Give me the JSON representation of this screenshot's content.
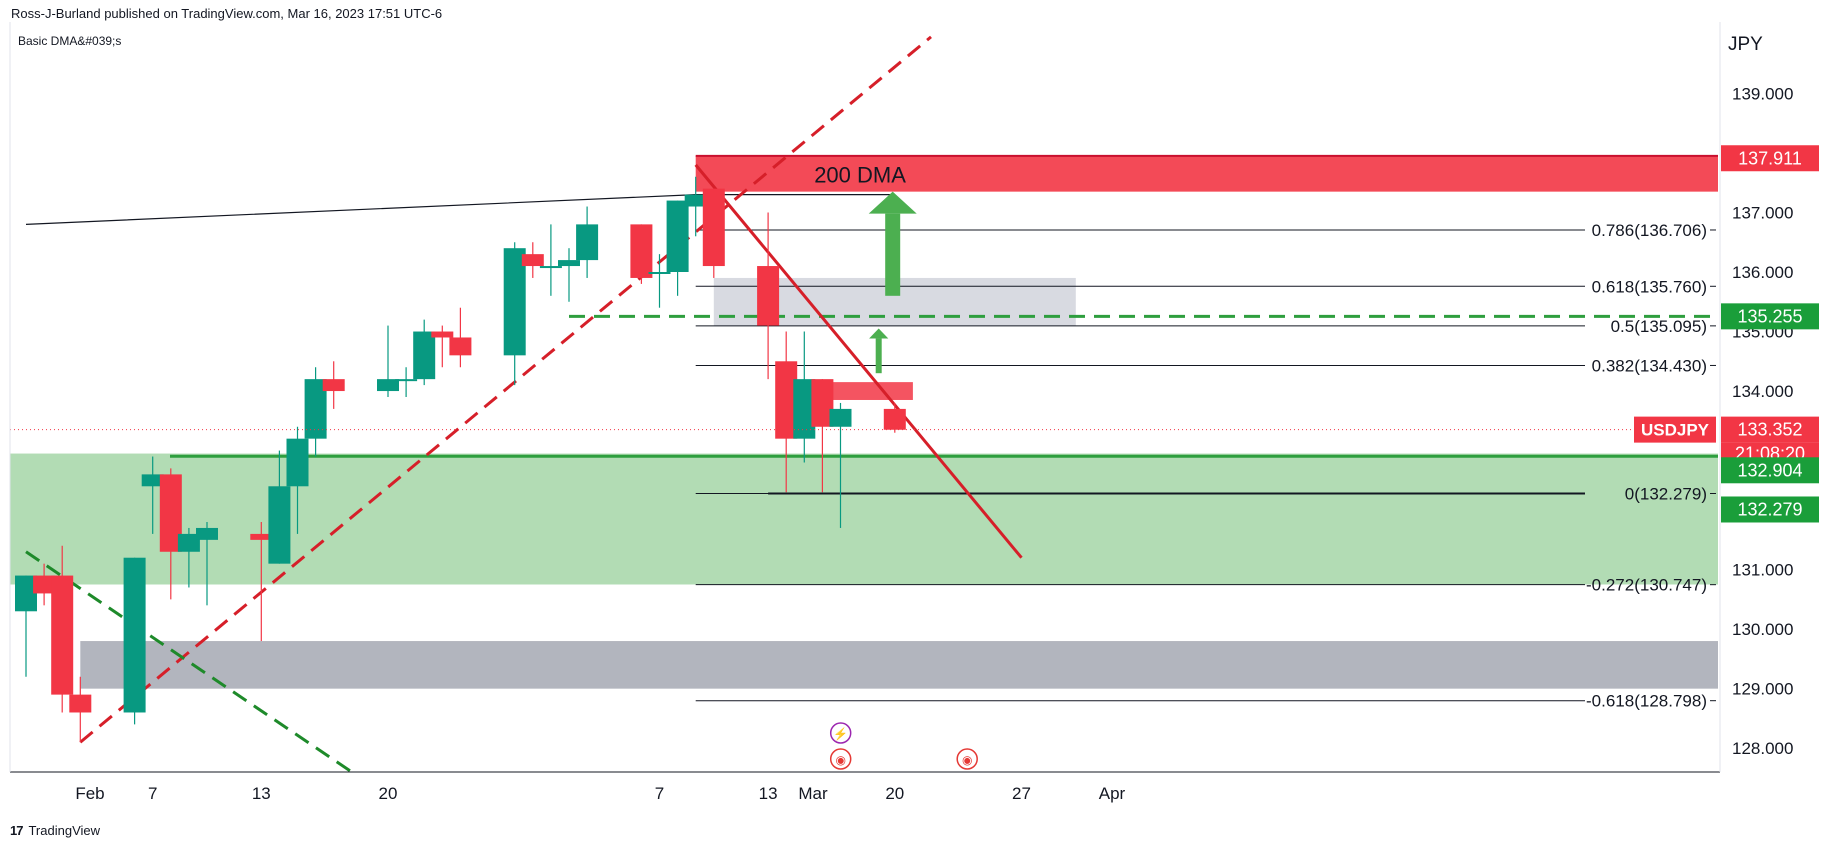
{
  "header": "Ross-J-Burland published on TradingView.com, Mar 16, 2023 17:51 UTC-6",
  "indicator": "Basic DMA&#039;s",
  "currency": "JPY",
  "brand": "TradingView",
  "annotations": {
    "dma": "200 DMA"
  },
  "colors": {
    "up": "#089981",
    "down": "#f23645",
    "resistance": "#f23645",
    "support_zone": "#a5d6a7",
    "grey_zone": "#b2b5be",
    "green_line": "#2e9e3e",
    "trend_red": "#d61f29",
    "trend_green": "#1e8a2a",
    "arrow": "#4caf50"
  },
  "chart_data": {
    "type": "candlestick",
    "symbol": "USDJPY",
    "x_ticks": [
      "Feb",
      "7",
      "13",
      "20",
      "Mar",
      "7",
      "13",
      "20",
      "27",
      "Apr"
    ],
    "y_ticks": [
      "139.000",
      "137.000",
      "136.000",
      "135.000",
      "134.000",
      "131.000",
      "130.000",
      "129.000",
      "128.000"
    ],
    "ylim": [
      127.6,
      140.2
    ],
    "candles": [
      {
        "date": "2023-01-31",
        "o": 130.3,
        "h": 130.9,
        "l": 129.2,
        "c": 130.9
      },
      {
        "date": "2023-02-01",
        "o": 130.9,
        "h": 131.1,
        "l": 130.4,
        "c": 130.6
      },
      {
        "date": "2023-02-02",
        "o": 130.9,
        "h": 131.4,
        "l": 128.6,
        "c": 128.9
      },
      {
        "date": "2023-02-03",
        "o": 128.9,
        "h": 129.2,
        "l": 128.1,
        "c": 128.6
      },
      {
        "date": "2023-02-06",
        "o": 128.6,
        "h": 131.2,
        "l": 128.4,
        "c": 131.2
      },
      {
        "date": "2023-02-07",
        "o": 132.4,
        "h": 132.9,
        "l": 131.6,
        "c": 132.6
      },
      {
        "date": "2023-02-08",
        "o": 132.6,
        "h": 132.7,
        "l": 130.5,
        "c": 131.3
      },
      {
        "date": "2023-02-09",
        "o": 131.3,
        "h": 131.7,
        "l": 130.7,
        "c": 131.6
      },
      {
        "date": "2023-02-10",
        "o": 131.5,
        "h": 131.8,
        "l": 130.4,
        "c": 131.7
      },
      {
        "date": "2023-02-13",
        "o": 131.6,
        "h": 131.8,
        "l": 129.8,
        "c": 131.5
      },
      {
        "date": "2023-02-14",
        "o": 131.1,
        "h": 133.0,
        "l": 131.1,
        "c": 132.4
      },
      {
        "date": "2023-02-15",
        "o": 132.4,
        "h": 133.4,
        "l": 131.6,
        "c": 133.2
      },
      {
        "date": "2023-02-16",
        "o": 133.2,
        "h": 134.4,
        "l": 132.9,
        "c": 134.2
      },
      {
        "date": "2023-02-17",
        "o": 134.2,
        "h": 134.5,
        "l": 133.7,
        "c": 134.0
      },
      {
        "date": "2023-02-20",
        "o": 134.0,
        "h": 135.1,
        "l": 133.9,
        "c": 134.2
      },
      {
        "date": "2023-02-21",
        "o": 134.2,
        "h": 134.4,
        "l": 133.9,
        "c": 134.2
      },
      {
        "date": "2023-02-22",
        "o": 134.2,
        "h": 135.2,
        "l": 134.1,
        "c": 135.0
      },
      {
        "date": "2023-02-23",
        "o": 135.0,
        "h": 135.1,
        "l": 134.4,
        "c": 134.9
      },
      {
        "date": "2023-02-24",
        "o": 134.9,
        "h": 135.4,
        "l": 134.4,
        "c": 134.6
      },
      {
        "date": "2023-02-27",
        "o": 134.6,
        "h": 136.5,
        "l": 134.1,
        "c": 136.4
      },
      {
        "date": "2023-02-28",
        "o": 136.3,
        "h": 136.5,
        "l": 135.9,
        "c": 136.1
      },
      {
        "date": "2023-03-01",
        "o": 136.1,
        "h": 136.8,
        "l": 135.6,
        "c": 136.1
      },
      {
        "date": "2023-03-02",
        "o": 136.1,
        "h": 136.4,
        "l": 135.5,
        "c": 136.2
      },
      {
        "date": "2023-03-03",
        "o": 136.2,
        "h": 137.1,
        "l": 135.9,
        "c": 136.8
      },
      {
        "date": "2023-03-06",
        "o": 136.8,
        "h": 136.8,
        "l": 135.8,
        "c": 135.9
      },
      {
        "date": "2023-03-07",
        "o": 136.0,
        "h": 136.3,
        "l": 135.4,
        "c": 136.0
      },
      {
        "date": "2023-03-08",
        "o": 136.0,
        "h": 137.2,
        "l": 135.6,
        "c": 137.2
      },
      {
        "date": "2023-03-09",
        "o": 137.1,
        "h": 137.6,
        "l": 136.6,
        "c": 137.3
      },
      {
        "date": "2023-03-10",
        "o": 137.4,
        "h": 137.4,
        "l": 135.9,
        "c": 136.1
      },
      {
        "date": "2023-03-13",
        "o": 136.1,
        "h": 137.0,
        "l": 134.2,
        "c": 135.1
      },
      {
        "date": "2023-03-14",
        "o": 134.5,
        "h": 135.0,
        "l": 132.3,
        "c": 133.2
      },
      {
        "date": "2023-03-15",
        "o": 133.2,
        "h": 135.0,
        "l": 132.8,
        "c": 134.2
      },
      {
        "date": "2023-03-16",
        "o": 134.2,
        "h": 134.2,
        "l": 132.3,
        "c": 133.4
      },
      {
        "date": "2023-03-17",
        "o": 133.4,
        "h": 133.8,
        "l": 131.7,
        "c": 133.7
      },
      {
        "date": "2023-03-20",
        "o": 133.7,
        "h": 133.8,
        "l": 133.3,
        "c": 133.35
      }
    ],
    "dma_200": [
      {
        "date": "2023-01-31",
        "value": 136.8
      },
      {
        "date": "2023-03-09",
        "value": 137.3
      },
      {
        "date": "2023-03-20",
        "value": 137.3
      }
    ],
    "fibonacci": [
      {
        "label": "0.786(136.706)",
        "level": 136.706
      },
      {
        "label": "0.618(135.760)",
        "level": 135.76
      },
      {
        "label": "0.5(135.095)",
        "level": 135.095
      },
      {
        "label": "0.382(134.430)",
        "level": 134.43
      },
      {
        "label": "0(132.279)",
        "level": 132.279
      },
      {
        "label": "-0.272(130.747)",
        "level": 130.747
      },
      {
        "label": "-0.618(128.798)",
        "level": 128.798
      }
    ],
    "zones": {
      "resistance": [
        137.35,
        137.95
      ],
      "support": [
        130.75,
        132.95
      ],
      "grey_upper": [
        135.1,
        135.9
      ],
      "grey_lower": [
        129.0,
        129.8
      ]
    },
    "horizontal_lines": {
      "dashed_green": 135.255,
      "solid_green": 132.904
    },
    "price_labels": [
      {
        "text": "137.911",
        "value": 137.911,
        "kind": "red"
      },
      {
        "text": "135.255",
        "value": 135.255,
        "kind": "green"
      },
      {
        "text": "133.352",
        "value": 133.352,
        "kind": "red"
      },
      {
        "text": "21:08:20",
        "value": 132.95,
        "kind": "red"
      },
      {
        "text": "132.904",
        "value": 132.904,
        "kind": "green"
      },
      {
        "text": "132.279",
        "value": 132.279,
        "kind": "green"
      }
    ],
    "last_price": 133.352,
    "countdown": "21:08:20",
    "grid": false
  }
}
